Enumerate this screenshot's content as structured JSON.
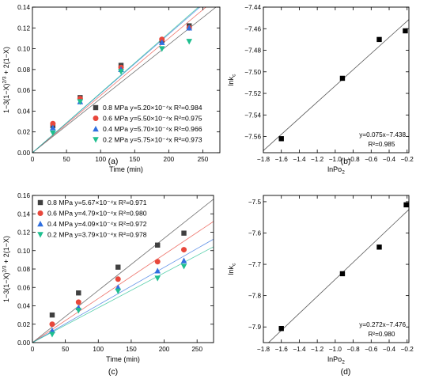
{
  "chart_data": [
    {
      "panel": "(a)",
      "type": "scatter",
      "xlabel": "Time (min)",
      "ylabel": "1−3(1−X)^2/3 + 2(1−X)",
      "xlim": [
        0,
        275
      ],
      "ylim": [
        0,
        0.14
      ],
      "xticks": [
        0,
        50,
        100,
        150,
        200,
        250
      ],
      "yticks": [
        0.0,
        0.02,
        0.04,
        0.06,
        0.08,
        0.1,
        0.12,
        0.14
      ],
      "legend": "right-lower",
      "series": [
        {
          "name": "0.8 MPa",
          "label": "y=5.20×10⁻⁴x R²=0.984",
          "marker": "square",
          "color": "#404040",
          "slope": 0.00052,
          "x": [
            30,
            70,
            130,
            190,
            230
          ],
          "y": [
            0.026,
            0.053,
            0.084,
            0.108,
            0.122
          ]
        },
        {
          "name": "0.6 MPa",
          "label": "y=5.50×10⁻⁴x R²=0.975",
          "marker": "circle",
          "color": "#e8473b",
          "slope": 0.00055,
          "x": [
            30,
            70,
            130,
            190,
            230
          ],
          "y": [
            0.028,
            0.052,
            0.082,
            0.109,
            0.12
          ]
        },
        {
          "name": "0.4 MPa",
          "label": "y=5.70×10⁻⁴x R²=0.966",
          "marker": "triangle-up",
          "color": "#2f6fe0",
          "slope": 0.00057,
          "x": [
            30,
            70,
            130,
            190,
            230
          ],
          "y": [
            0.024,
            0.049,
            0.08,
            0.106,
            0.12
          ]
        },
        {
          "name": "0.2 MPa",
          "label": "y=5.75×10⁻⁴x R²=0.973",
          "marker": "triangle-down",
          "color": "#1fbf8f",
          "slope": 0.000575,
          "x": [
            30,
            70,
            130,
            190,
            230
          ],
          "y": [
            0.019,
            0.049,
            0.078,
            0.1,
            0.107
          ]
        }
      ]
    },
    {
      "panel": "(b)",
      "type": "scatter",
      "xlabel": "lnPo",
      "xlabel_sub": "2",
      "ylabel": "lnk",
      "ylabel_sub": "c",
      "xlim": [
        -1.8,
        -0.18
      ],
      "ylim": [
        -7.575,
        -7.44
      ],
      "xticks": [
        -1.8,
        -1.6,
        -1.4,
        -1.2,
        -1.0,
        -0.8,
        -0.6,
        -0.4,
        -0.2
      ],
      "yticks": [
        -7.56,
        -7.54,
        -7.52,
        -7.5,
        -7.48,
        -7.46,
        -7.44
      ],
      "fit": {
        "slope": 0.075,
        "intercept": -7.438
      },
      "annotation": [
        "y=0.075x−7.438",
        "R²=0.985"
      ],
      "points": {
        "x": [
          -1.6,
          -0.92,
          -0.51,
          -0.22
        ],
        "y": [
          -7.562,
          -7.506,
          -7.47,
          -7.462
        ]
      }
    },
    {
      "panel": "(c)",
      "type": "scatter",
      "xlabel": "Time (min)",
      "ylabel": "1−3(1−X)^2/3 + 2(1−X)",
      "xlim": [
        0,
        275
      ],
      "ylim": [
        0,
        0.16
      ],
      "xticks": [
        0,
        50,
        100,
        150,
        200,
        250
      ],
      "yticks": [
        0.0,
        0.02,
        0.04,
        0.06,
        0.08,
        0.1,
        0.12,
        0.14,
        0.16
      ],
      "legend": "top-left",
      "series": [
        {
          "name": "0.8 MPa",
          "label": "y=5.67×10⁻⁴x R²=0.971",
          "marker": "square",
          "color": "#404040",
          "slope": 0.000567,
          "x": [
            30,
            70,
            130,
            190,
            230
          ],
          "y": [
            0.03,
            0.054,
            0.082,
            0.106,
            0.119
          ]
        },
        {
          "name": "0.6 MPa",
          "label": "y=4.79×10⁻⁴x R²=0.980",
          "marker": "circle",
          "color": "#e8473b",
          "slope": 0.000479,
          "x": [
            30,
            70,
            130,
            190,
            230
          ],
          "y": [
            0.02,
            0.044,
            0.069,
            0.088,
            0.101
          ]
        },
        {
          "name": "0.4 MPa",
          "label": "y=4.09×10⁻⁴x R²=0.972",
          "marker": "triangle-up",
          "color": "#2f6fe0",
          "slope": 0.000409,
          "x": [
            30,
            70,
            130,
            190,
            230
          ],
          "y": [
            0.013,
            0.038,
            0.06,
            0.078,
            0.089
          ]
        },
        {
          "name": "0.2 MPa",
          "label": "y=3.79×10⁻⁴x R²=0.978",
          "marker": "triangle-down",
          "color": "#1fbf8f",
          "slope": 0.000379,
          "x": [
            30,
            70,
            130,
            190,
            230
          ],
          "y": [
            0.009,
            0.035,
            0.056,
            0.07,
            0.083
          ]
        }
      ]
    },
    {
      "panel": "(d)",
      "type": "scatter",
      "xlabel": "lnPo",
      "xlabel_sub": "2",
      "ylabel": "lnk",
      "ylabel_sub": "c",
      "xlim": [
        -1.8,
        -0.18
      ],
      "ylim": [
        -7.95,
        -7.48
      ],
      "xticks": [
        -1.8,
        -1.6,
        -1.4,
        -1.2,
        -1.0,
        -0.8,
        -0.6,
        -0.4,
        -0.2
      ],
      "yticks": [
        -7.9,
        -7.8,
        -7.7,
        -7.6,
        -7.5
      ],
      "fit": {
        "slope": 0.272,
        "intercept": -7.476
      },
      "annotation": [
        "y=0.272x−7.476",
        "R²=0.980"
      ],
      "points": {
        "x": [
          -1.6,
          -0.92,
          -0.51,
          -0.21
        ],
        "y": [
          -7.905,
          -7.73,
          -7.645,
          -7.51
        ]
      }
    }
  ]
}
